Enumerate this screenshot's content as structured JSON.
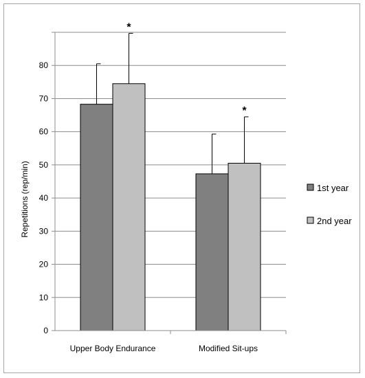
{
  "chart_data": {
    "type": "bar",
    "title": "",
    "xlabel": "",
    "ylabel": "Repetitions (rep/min)",
    "ylim": [
      0,
      90
    ],
    "yticks": [
      0,
      10,
      20,
      30,
      40,
      50,
      60,
      70,
      80
    ],
    "grid": true,
    "legend_position": "right",
    "categories": [
      "Upper Body Endurance",
      "Modified Sit-ups"
    ],
    "series": [
      {
        "name": "1st year",
        "values": [
          68.3,
          47.3
        ],
        "error": [
          12.2,
          12.0
        ],
        "color": "#808080"
      },
      {
        "name": "2nd year",
        "values": [
          74.5,
          50.5
        ],
        "error": [
          15.2,
          14.0
        ],
        "color": "#c0c0c0"
      }
    ],
    "annotations": [
      "*",
      "*"
    ]
  }
}
